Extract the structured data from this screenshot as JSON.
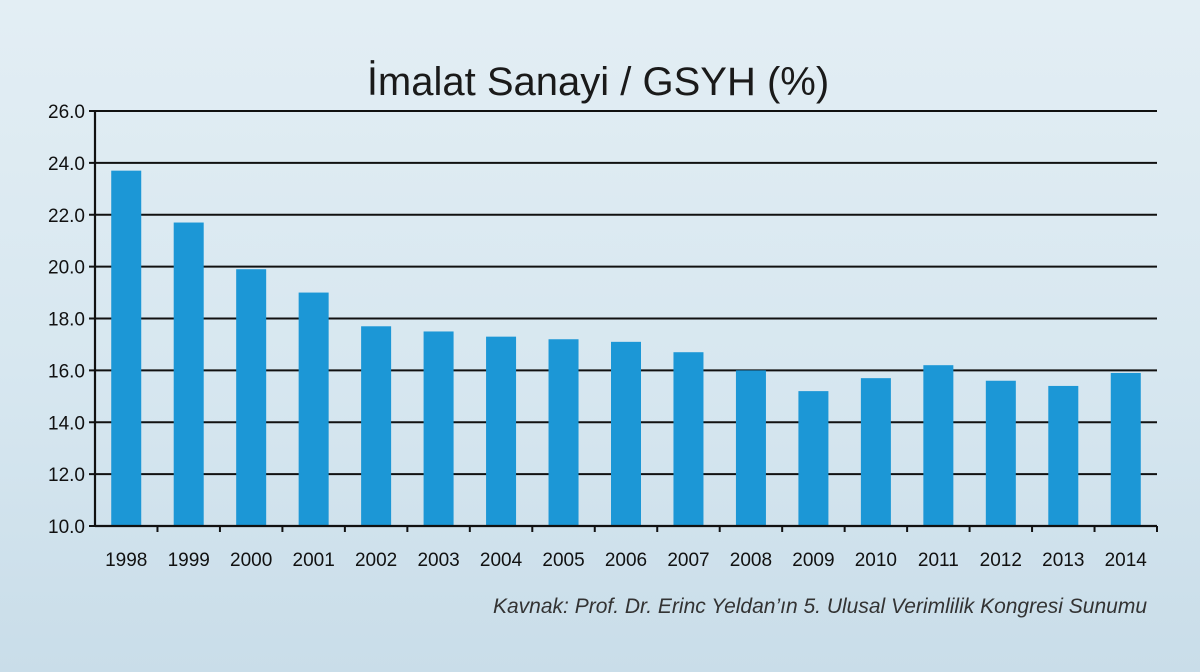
{
  "chart_data": {
    "type": "bar",
    "title": "İmalat Sanayi / GSYH (%)",
    "categories": [
      "1998",
      "1999",
      "2000",
      "2001",
      "2002",
      "2003",
      "2004",
      "2005",
      "2006",
      "2007",
      "2008",
      "2009",
      "2010",
      "2011",
      "2012",
      "2013",
      "2014"
    ],
    "values": [
      23.7,
      21.7,
      19.9,
      19.0,
      17.7,
      17.5,
      17.3,
      17.2,
      17.1,
      16.7,
      16.0,
      15.2,
      15.7,
      16.2,
      15.6,
      15.4,
      15.9
    ],
    "ylim": [
      10.0,
      26.0
    ],
    "yticks": [
      "10.0",
      "12.0",
      "14.0",
      "16.0",
      "18.0",
      "20.0",
      "22.0",
      "24.0",
      "26.0"
    ],
    "xlabel": "",
    "ylabel": "",
    "grid": true,
    "legend": "none",
    "bar_color": "#1c97d6",
    "source": "Kavnak: Prof. Dr. Erinc Yeldan’ın 5. Ulusal Verimlilik Kongresi Sunumu"
  }
}
